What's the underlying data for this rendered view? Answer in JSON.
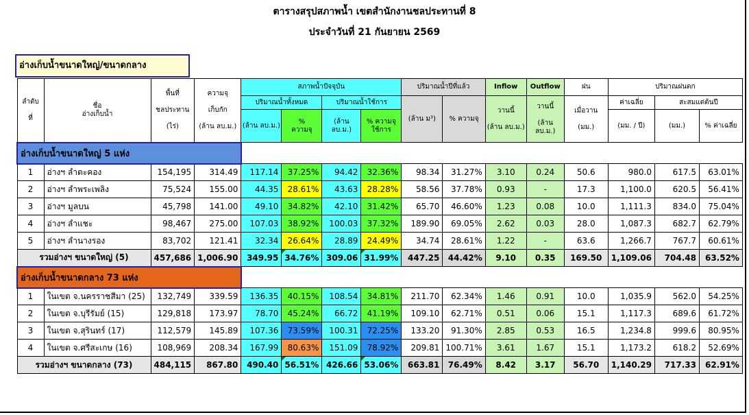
{
  "title": "ตารางสรุปสภาพน้ำ เขตสำนักงานชลประทานที่ 8",
  "subtitle": "ประจำวันที่ 21 กันยายน 2569",
  "section_title": "อ่างเก็บน้ำขนาดใหญ่/ขนาดกลาง",
  "headers": {
    "no": "ลำดับ",
    "no2": "ที่",
    "name": "ชื่อ",
    "name2": "อ่างเก็บน้ำ",
    "area": "พื้นที่",
    "area2": "ชลประทาน",
    "area_unit": "(ไร่)",
    "cap": "ความจุ",
    "cap2": "เก็บกัก",
    "cap_unit": "(ล้าน ลบ.ม.)",
    "current": "สภาพน้ำปัจจุบัน",
    "total_vol": "ปริมาณน้ำทั้งหมด",
    "usable_vol": "ปริมาณน้ำใช้การ",
    "mcm": "(ล้าน ลบ.ม.)",
    "pct": "%",
    "pct_cap": "ความจุ",
    "pct_use": "% ความจุ",
    "pct_use2": "ใช้การ",
    "lastyear": "ปริมาณน้ำปีที่แล้ว",
    "ly_vol": "(ล้าน ม³)",
    "ly_pct": "% ความจุ",
    "inflow": "Inflow",
    "outflow": "Outflow",
    "yesterday": "วานนี้",
    "flow_unit": "(ล้าน ลบ.ม.)",
    "rain": "ฝน",
    "rain2": "เมื่อวาน",
    "rain_unit": "(มม.)",
    "rainfall": "ปริมาณฝนตก",
    "avg": "ค่าเฉลี่ย",
    "avg_unit": "(มม. / ปี)",
    "accum": "สะสมแต่ต้นปี",
    "accum_unit": "(มม.)",
    "accum_pct": "% ค่าเฉลี่ย"
  },
  "large_title": "อ่างเก็บน้ำขนาดใหญ่ 5 แห่ง",
  "large_rows": [
    [
      "1",
      "อ่างฯ ลำตะคอง",
      "154,195",
      "314.49",
      "117.14",
      "37.25%",
      "94.42",
      "32.36%",
      "98.34",
      "31.27%",
      "3.10",
      "0.24",
      "50.6",
      "980.0",
      "617.5",
      "63.01%"
    ],
    [
      "2",
      "อ่างฯ ลำพระเพลิง",
      "75,524",
      "155.00",
      "44.35",
      "28.61%",
      "43.63",
      "28.28%",
      "58.56",
      "37.78%",
      "0.93",
      "-",
      "17.3",
      "1,100.0",
      "620.5",
      "56.41%"
    ],
    [
      "3",
      "อ่างฯ มูลบน",
      "45,798",
      "141.00",
      "49.10",
      "34.82%",
      "42.10",
      "31.42%",
      "65.70",
      "46.60%",
      "1.23",
      "0.08",
      "10.0",
      "1,111.3",
      "834.0",
      "75.04%"
    ],
    [
      "4",
      "อ่างฯ ลำแชะ",
      "98,467",
      "275.00",
      "107.03",
      "38.92%",
      "100.03",
      "37.32%",
      "189.90",
      "69.05%",
      "2.62",
      "0.03",
      "28.0",
      "1,087.3",
      "682.7",
      "62.79%"
    ],
    [
      "5",
      "อ่างฯ ลำนางรอง",
      "83,702",
      "121.41",
      "32.34",
      "26.64%",
      "28.89",
      "24.49%",
      "34.74",
      "28.61%",
      "1.22",
      "-",
      "63.6",
      "1,266.7",
      "767.7",
      "60.61%"
    ]
  ],
  "large_total": [
    "รวมอ่างฯ ขนาดใหญ่ (5)",
    "457,686",
    "1,006.90",
    "349.95",
    "34.76%",
    "309.06",
    "31.99%",
    "447.25",
    "44.42%",
    "9.10",
    "0.35",
    "169.50",
    "1,109.06",
    "704.48",
    "63.52%"
  ],
  "medium_title": "อ่างเก็บน้ำขนาดกลาง 73 แห่ง",
  "medium_rows": [
    [
      "1",
      "ในเขต จ.นครราชสีมา (25)",
      "132,749",
      "339.59",
      "136.35",
      "40.15%",
      "108.54",
      "34.81%",
      "211.70",
      "62.34%",
      "1.46",
      "0.91",
      "10.0",
      "1,035.9",
      "562.0",
      "54.25%"
    ],
    [
      "2",
      "ในเขต จ.บุรีรัมย์ (15)",
      "129,818",
      "173.97",
      "78.70",
      "45.24%",
      "66.72",
      "41.19%",
      "109.10",
      "62.71%",
      "0.51",
      "0.06",
      "15.1",
      "1,117.3",
      "689.6",
      "61.72%"
    ],
    [
      "3",
      "ในเขต จ.สุรินทร์ (17)",
      "112,579",
      "145.89",
      "107.36",
      "73.59%",
      "100.31",
      "72.25%",
      "133.20",
      "91.30%",
      "2.85",
      "0.53",
      "16.5",
      "1,234.8",
      "999.6",
      "80.95%"
    ],
    [
      "4",
      "ในเขต จ.ศรีสะเกษ (16)",
      "108,969",
      "208.34",
      "167.99",
      "80.63%",
      "151.09",
      "78.92%",
      "209.81",
      "100.71%",
      "3.61",
      "1.67",
      "15.1",
      "1,173.2",
      "618.2",
      "52.69%"
    ]
  ],
  "medium_total": [
    "รวมอ่างฯ ขนาดกลาง (73)",
    "484,115",
    "867.80",
    "490.40",
    "56.51%",
    "426.66",
    "53.06%",
    "663.81",
    "76.49%",
    "8.42",
    "3.17",
    "56.70",
    "1,140.29",
    "717.33",
    "62.91%"
  ],
  "colors": {
    "green": "#5cff35",
    "yellow": "#ffff00",
    "blue": "#2a8ff0",
    "orange": "#f59448",
    "cyan": "#55ffff",
    "lightgreen": "#c9f2b5"
  }
}
